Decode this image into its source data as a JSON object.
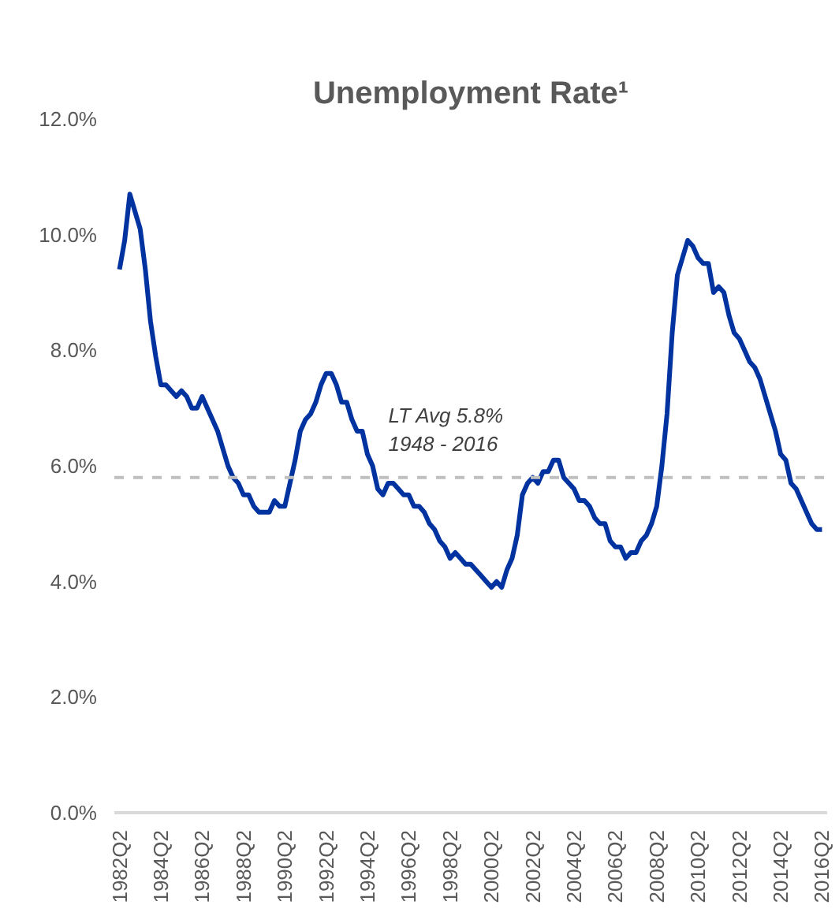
{
  "chart_data": {
    "type": "line",
    "title": "Unemployment Rate¹",
    "categories": [
      "1982Q2",
      null,
      null,
      null,
      null,
      null,
      null,
      null,
      "1984Q2",
      null,
      null,
      null,
      null,
      null,
      null,
      null,
      "1986Q2",
      null,
      null,
      null,
      null,
      null,
      null,
      null,
      "1988Q2",
      null,
      null,
      null,
      null,
      null,
      null,
      null,
      "1990Q2",
      null,
      null,
      null,
      null,
      null,
      null,
      null,
      "1992Q2",
      null,
      null,
      null,
      null,
      null,
      null,
      null,
      "1994Q2",
      null,
      null,
      null,
      null,
      null,
      null,
      null,
      "1996Q2",
      null,
      null,
      null,
      null,
      null,
      null,
      null,
      "1998Q2",
      null,
      null,
      null,
      null,
      null,
      null,
      null,
      "2000Q2",
      null,
      null,
      null,
      null,
      null,
      null,
      null,
      "2002Q2",
      null,
      null,
      null,
      null,
      null,
      null,
      null,
      "2004Q2",
      null,
      null,
      null,
      null,
      null,
      null,
      null,
      "2006Q2",
      null,
      null,
      null,
      null,
      null,
      null,
      null,
      "2008Q2",
      null,
      null,
      null,
      null,
      null,
      null,
      null,
      "2010Q2",
      null,
      null,
      null,
      null,
      null,
      null,
      null,
      "2012Q2",
      null,
      null,
      null,
      null,
      null,
      null,
      null,
      "2014Q2",
      null,
      null,
      null,
      null,
      null,
      null,
      null,
      "2016Q2"
    ],
    "series": [
      {
        "color": "#0033a0",
        "values": [
          9.4,
          9.9,
          10.7,
          10.4,
          10.1,
          9.4,
          8.5,
          7.9,
          7.4,
          7.4,
          7.3,
          7.2,
          7.3,
          7.2,
          7.0,
          7.0,
          7.2,
          7.0,
          6.8,
          6.6,
          6.3,
          6.0,
          5.8,
          5.7,
          5.5,
          5.5,
          5.3,
          5.2,
          5.2,
          5.2,
          5.4,
          5.3,
          5.3,
          5.7,
          6.1,
          6.6,
          6.8,
          6.9,
          7.1,
          7.4,
          7.6,
          7.6,
          7.4,
          7.1,
          7.1,
          6.8,
          6.6,
          6.6,
          6.2,
          6.0,
          5.6,
          5.5,
          5.7,
          5.7,
          5.6,
          5.5,
          5.5,
          5.3,
          5.3,
          5.2,
          5.0,
          4.9,
          4.7,
          4.6,
          4.4,
          4.5,
          4.4,
          4.3,
          4.3,
          4.2,
          4.1,
          4.0,
          3.9,
          4.0,
          3.9,
          4.2,
          4.4,
          4.8,
          5.5,
          5.7,
          5.8,
          5.7,
          5.9,
          5.9,
          6.1,
          6.1,
          5.8,
          5.7,
          5.6,
          5.4,
          5.4,
          5.3,
          5.1,
          5.0,
          5.0,
          4.7,
          4.6,
          4.6,
          4.4,
          4.5,
          4.5,
          4.7,
          4.8,
          5.0,
          5.3,
          6.0,
          6.9,
          8.3,
          9.3,
          9.6,
          9.9,
          9.8,
          9.6,
          9.5,
          9.5,
          9.0,
          9.1,
          9.0,
          8.6,
          8.3,
          8.2,
          8.0,
          7.8,
          7.7,
          7.5,
          7.2,
          6.9,
          6.6,
          6.2,
          6.1,
          5.7,
          5.6,
          5.4,
          5.2,
          5.0,
          4.9,
          4.9
        ]
      }
    ],
    "ylim": [
      0,
      12
    ],
    "yticks": [
      {
        "value": 0,
        "label": "0.0%"
      },
      {
        "value": 2,
        "label": "2.0%"
      },
      {
        "value": 4,
        "label": "4.0%"
      },
      {
        "value": 6,
        "label": "6.0%"
      },
      {
        "value": 8,
        "label": "8.0%"
      },
      {
        "value": 10,
        "label": "10.0%"
      },
      {
        "value": 12,
        "label": "12.0%"
      }
    ],
    "ref_lines": [
      {
        "axis": "y",
        "value": 5.8,
        "label": "LT Avg 5.8%\n1948 - 2016",
        "color": "#bfbfbf",
        "line_style": "dashed"
      }
    ],
    "marker": "none",
    "line_style": "solid"
  }
}
